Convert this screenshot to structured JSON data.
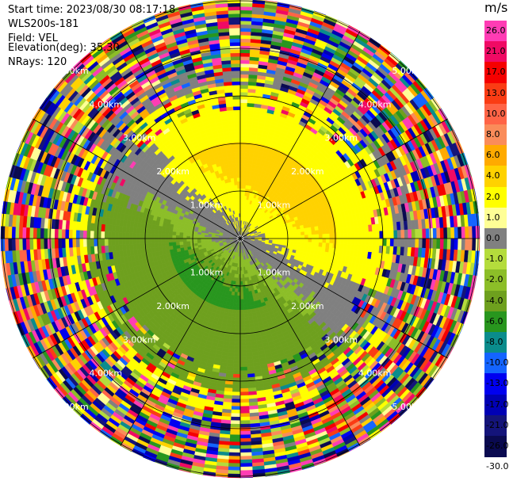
{
  "header": {
    "start_time": "Start time: 2023/08/30 08:17:18",
    "station": "WLS200s-181",
    "field": "Field: VEL",
    "elevation": "Elevation(deg): 35.30",
    "nrays": "NRays: 120"
  },
  "colorbar": {
    "unit": "m/s",
    "ticks": [
      "26.0",
      "21.0",
      "17.0",
      "13.0",
      "10.0",
      "8.0",
      "6.0",
      "4.0",
      "2.0",
      "1.0",
      "0.0",
      "-1.0",
      "-2.0",
      "-4.0",
      "-6.0",
      "-8.0",
      "-10.0",
      "-13.0",
      "-17.0",
      "-21.0",
      "-26.0",
      "-30.0"
    ],
    "colors": [
      "#ff3cb4",
      "#f00a64",
      "#f50000",
      "#fa3c14",
      "#ff6446",
      "#fa8c5a",
      "#ffaa00",
      "#ffd200",
      "#ffff00",
      "#ffff96",
      "#808080",
      "#b4dc3c",
      "#8cbe28",
      "#6ea01e",
      "#28961e",
      "#0a8c8c",
      "#1464ff",
      "#0000f0",
      "#0000b4",
      "#14147a",
      "#0a0a50"
    ]
  },
  "rings": [
    {
      "label": "1.00km"
    },
    {
      "label": "2.00km"
    },
    {
      "label": "3.00km"
    },
    {
      "label": "4.00km"
    },
    {
      "label": "5.00km"
    }
  ]
}
